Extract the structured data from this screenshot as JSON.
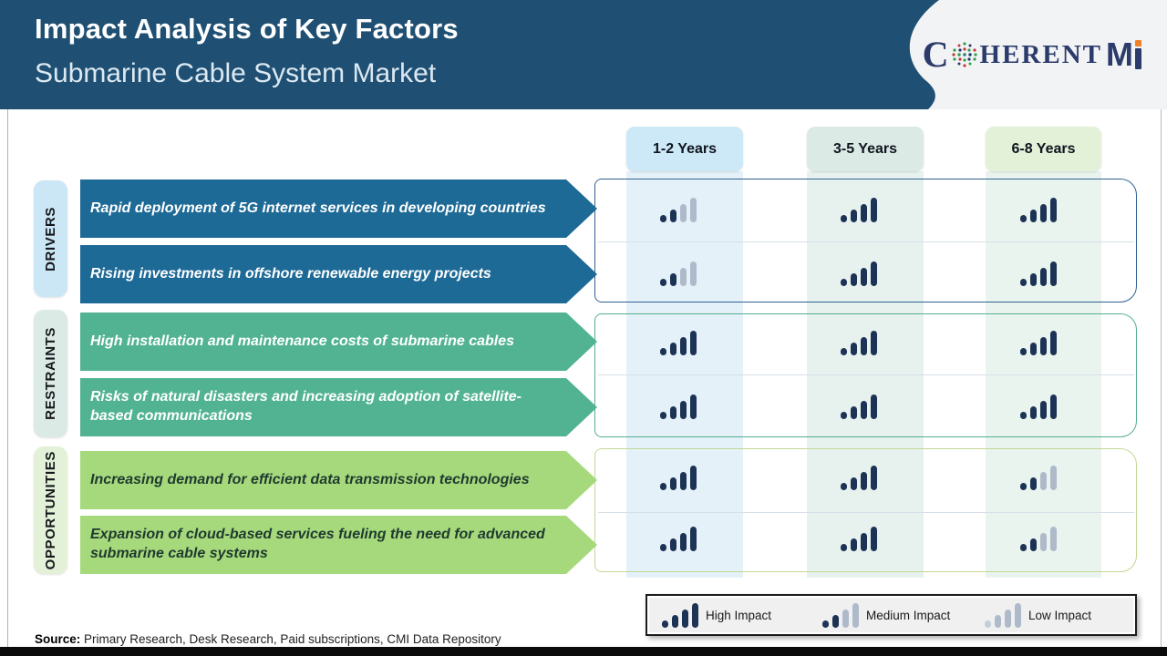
{
  "header": {
    "title": "Impact Analysis of Key Factors",
    "subtitle": "Submarine Cable System Market",
    "logo": {
      "alt": "CoherentMI",
      "c": "C",
      "rest": "HERENT",
      "m": "M"
    },
    "colors": {
      "header_bg": "#1F5073",
      "panel_bg": "#F2F3F5",
      "logo_navy": "#2B3B6B",
      "logo_orange": "#F07F29"
    }
  },
  "columns": [
    {
      "label": "1-2 Years",
      "chip_color": "#CDE8F6",
      "band_color": "#E5F1F8"
    },
    {
      "label": "3-5 Years",
      "chip_color": "#DBEAE5",
      "band_color": "#E7F2EF"
    },
    {
      "label": "6-8 Years",
      "chip_color": "#E3F1D8",
      "band_color": "#EAF4EE"
    }
  ],
  "groups": [
    {
      "label": "DRIVERS",
      "chip_color": "#CBE6F5",
      "arrow_color": "#1E6A96",
      "outline_color": "#2E6293",
      "text_color": "#FFFFFF",
      "rows": [
        {
          "text": "Rapid deployment of 5G internet services in developing countries",
          "impacts": [
            "medium",
            "high",
            "high"
          ]
        },
        {
          "text": "Rising investments in offshore renewable energy projects",
          "impacts": [
            "medium",
            "high",
            "high"
          ]
        }
      ]
    },
    {
      "label": "RESTRAINTS",
      "chip_color": "#DCEAE5",
      "arrow_color": "#52B392",
      "outline_color": "#53AE8F",
      "text_color": "#FFFFFF",
      "rows": [
        {
          "text": "High installation and maintenance costs of submarine cables",
          "impacts": [
            "high",
            "high",
            "high"
          ]
        },
        {
          "text": "Risks of natural disasters and increasing adoption of satellite-based communications",
          "impacts": [
            "high",
            "high",
            "high"
          ]
        }
      ]
    },
    {
      "label": "OPPORTUNITIES",
      "chip_color": "#E3F1D8",
      "arrow_color": "#A6D97C",
      "outline_color": "#C3D793",
      "text_color": "#1E3A2F",
      "rows": [
        {
          "text": "Increasing demand for efficient data transmission technologies",
          "impacts": [
            "high",
            "high",
            "medium"
          ]
        },
        {
          "text": "Expansion of cloud-based services fueling the need for advanced submarine cable systems",
          "impacts": [
            "high",
            "high",
            "medium"
          ]
        }
      ]
    }
  ],
  "impact_colors": {
    "dark_bar": "#1D3356",
    "light_bar": "#AEBACA"
  },
  "legend": {
    "items": [
      {
        "label": "High Impact",
        "level": "high"
      },
      {
        "label": "Medium Impact",
        "level": "medium"
      },
      {
        "label": "Low Impact",
        "level": "low"
      }
    ]
  },
  "source": {
    "label": "Source:",
    "text": " Primary Research, Desk Research, Paid subscriptions, CMI Data Repository"
  }
}
